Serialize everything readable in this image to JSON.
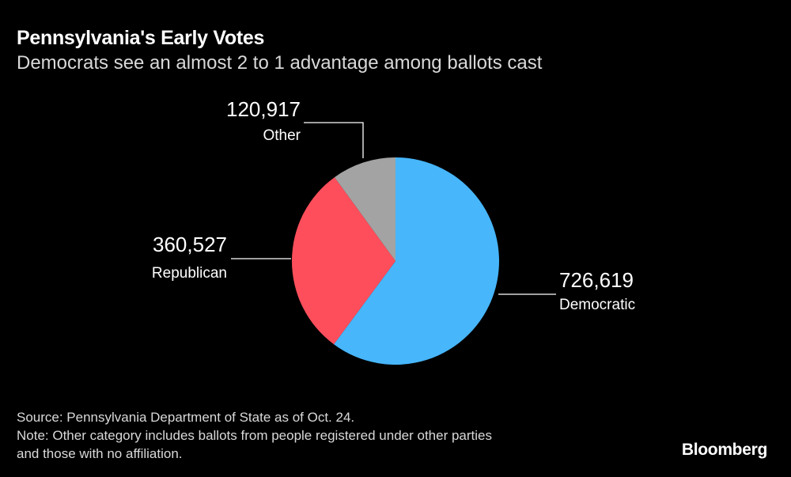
{
  "title": "Pennsylvania's Early Votes",
  "subtitle": "Democrats see an almost 2 to 1 advantage among ballots cast",
  "chart_data": {
    "type": "pie",
    "title": "Pennsylvania's Early Votes",
    "subtitle": "Democrats see an almost 2 to 1 advantage among ballots cast",
    "slices": [
      {
        "label": "Democratic",
        "value": 726619,
        "display": "726,619",
        "color": "#47b6fb"
      },
      {
        "label": "Republican",
        "value": 360527,
        "display": "360,527",
        "color": "#ff4e5b"
      },
      {
        "label": "Other",
        "value": 120917,
        "display": "120,917",
        "color": "#a3a3a3"
      }
    ],
    "legend": "none"
  },
  "footer": {
    "source": "Source: Pennsylvania Department of State as of Oct. 24.",
    "note_line1": "Note: Other category includes ballots from people registered under other parties",
    "note_line2": "and those with no affiliation."
  },
  "brand": "Bloomberg"
}
